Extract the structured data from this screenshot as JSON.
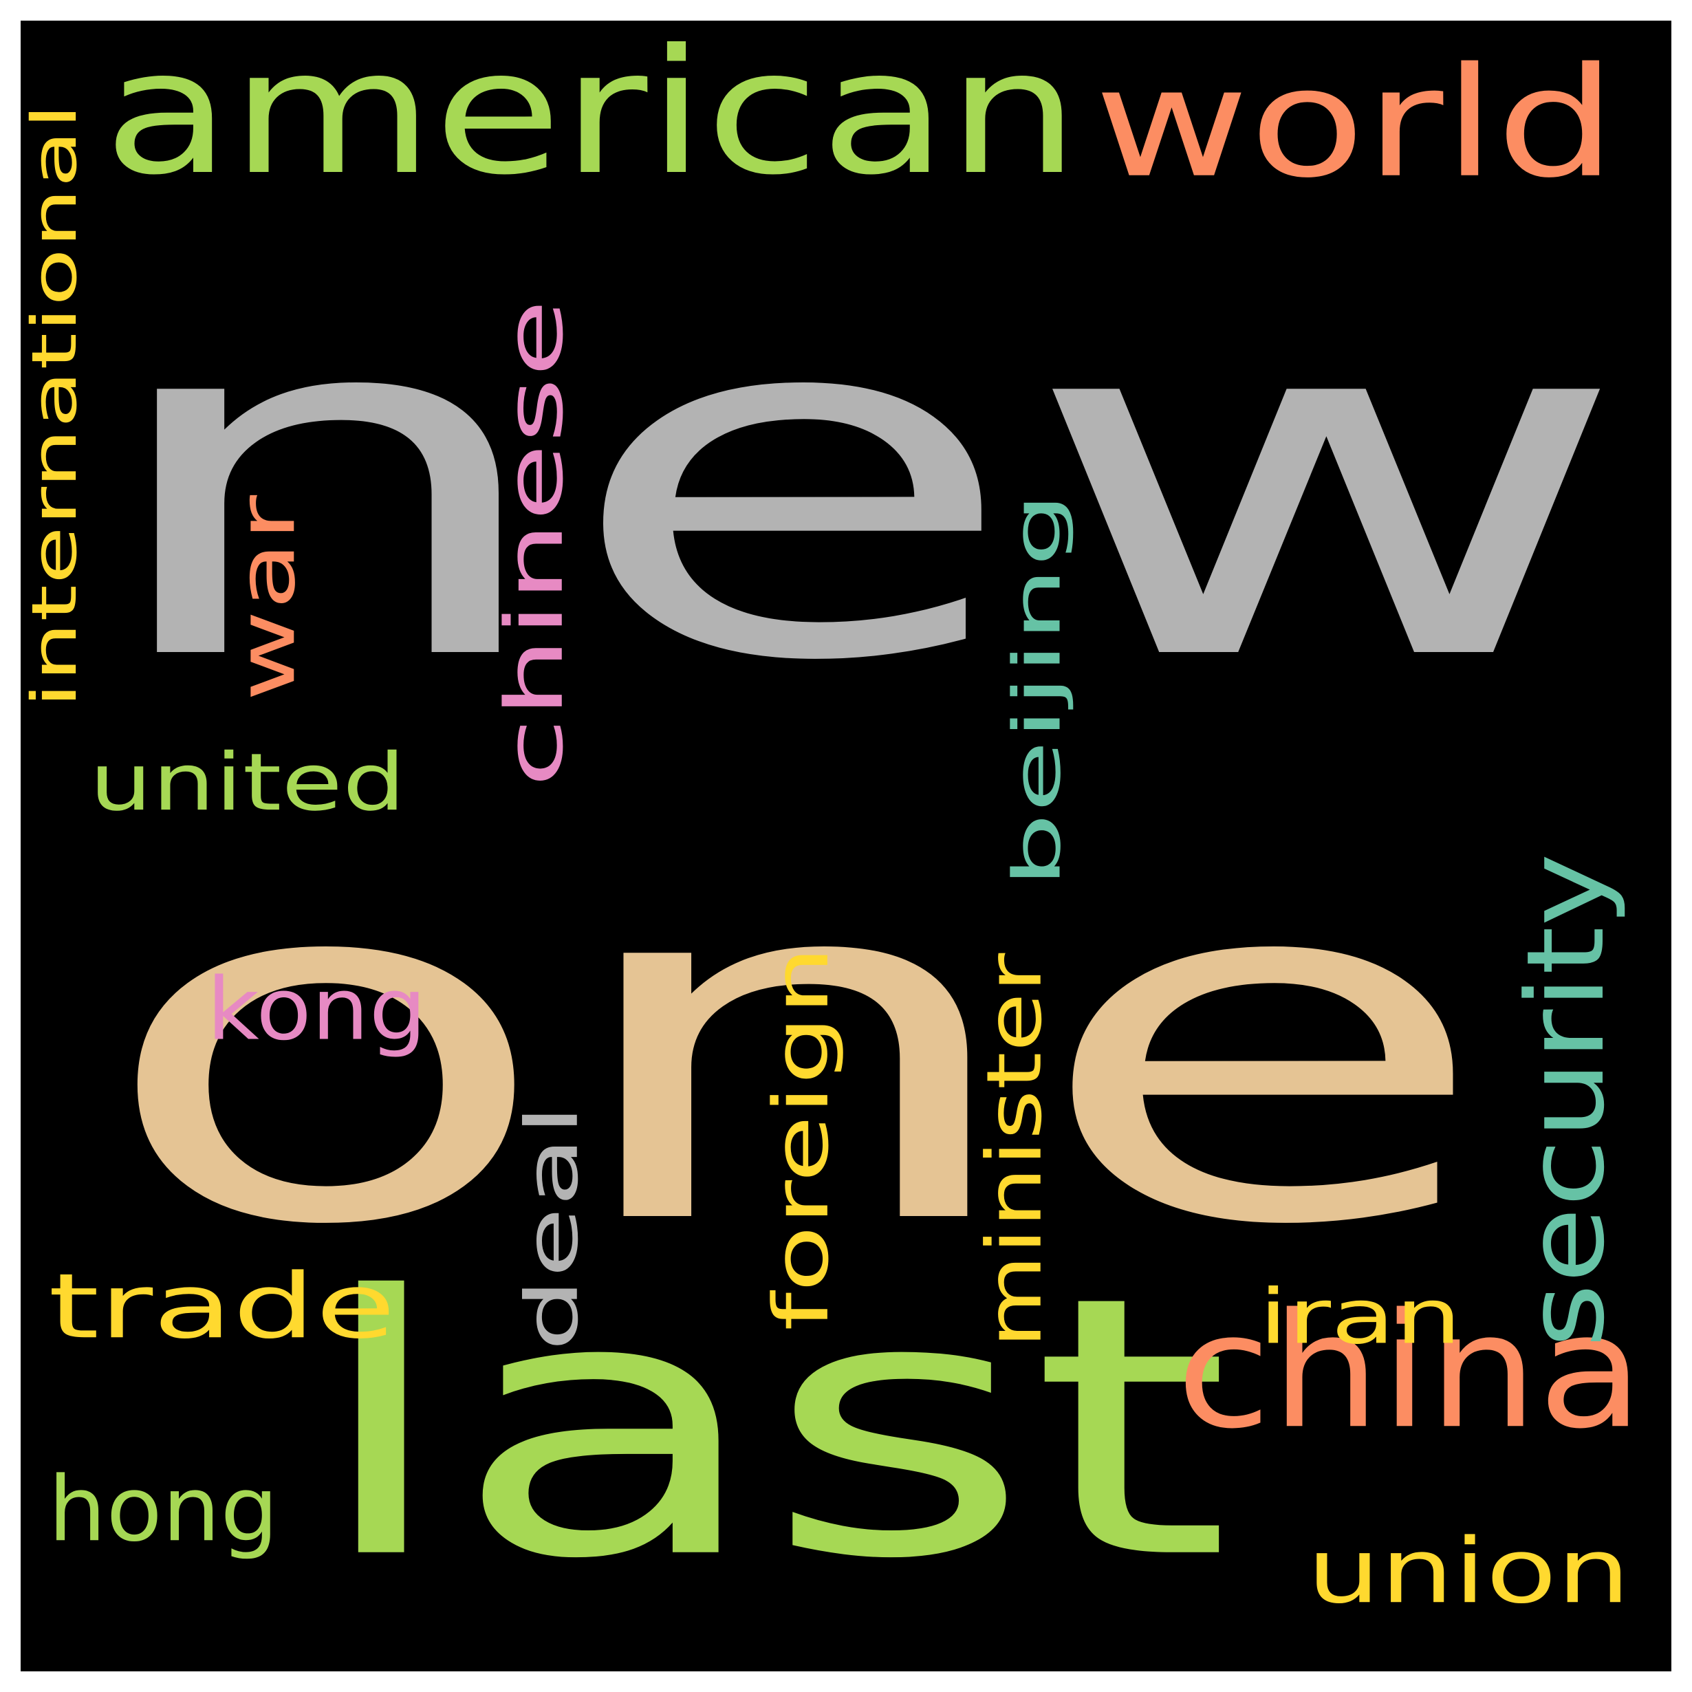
{
  "background": "#000000",
  "words": [
    {
      "id": "new",
      "text": "new",
      "color": "#b3b3b3",
      "vertical": false
    },
    {
      "id": "one",
      "text": "one",
      "color": "#e5c494",
      "vertical": false
    },
    {
      "id": "last",
      "text": "last",
      "color": "#a6d854",
      "vertical": false
    },
    {
      "id": "american",
      "text": "american",
      "color": "#a6d854",
      "vertical": false
    },
    {
      "id": "world",
      "text": "world",
      "color": "#fc8d62",
      "vertical": false
    },
    {
      "id": "china",
      "text": "china",
      "color": "#fc8d62",
      "vertical": false
    },
    {
      "id": "chinese",
      "text": "chinese",
      "color": "#e78ac3",
      "vertical": true
    },
    {
      "id": "security",
      "text": "security",
      "color": "#66c2a5",
      "vertical": true
    },
    {
      "id": "international",
      "text": "international",
      "color": "#ffd92f",
      "vertical": true
    },
    {
      "id": "war",
      "text": "war",
      "color": "#fc8d62",
      "vertical": true
    },
    {
      "id": "beijing",
      "text": "beijing",
      "color": "#66c2a5",
      "vertical": true
    },
    {
      "id": "united",
      "text": "united",
      "color": "#a6d854",
      "vertical": false
    },
    {
      "id": "kong",
      "text": "kong",
      "color": "#e78ac3",
      "vertical": false
    },
    {
      "id": "foreign",
      "text": "foreign",
      "color": "#ffd92f",
      "vertical": true
    },
    {
      "id": "deal",
      "text": "deal",
      "color": "#b3b3b3",
      "vertical": true
    },
    {
      "id": "minister",
      "text": "minister",
      "color": "#ffd92f",
      "vertical": true
    },
    {
      "id": "trade",
      "text": "trade",
      "color": "#ffd92f",
      "vertical": false
    },
    {
      "id": "iran",
      "text": "iran",
      "color": "#ffd92f",
      "vertical": false
    },
    {
      "id": "hong",
      "text": "hong",
      "color": "#a6d854",
      "vertical": false
    },
    {
      "id": "union",
      "text": "union",
      "color": "#ffd92f",
      "vertical": false
    }
  ]
}
